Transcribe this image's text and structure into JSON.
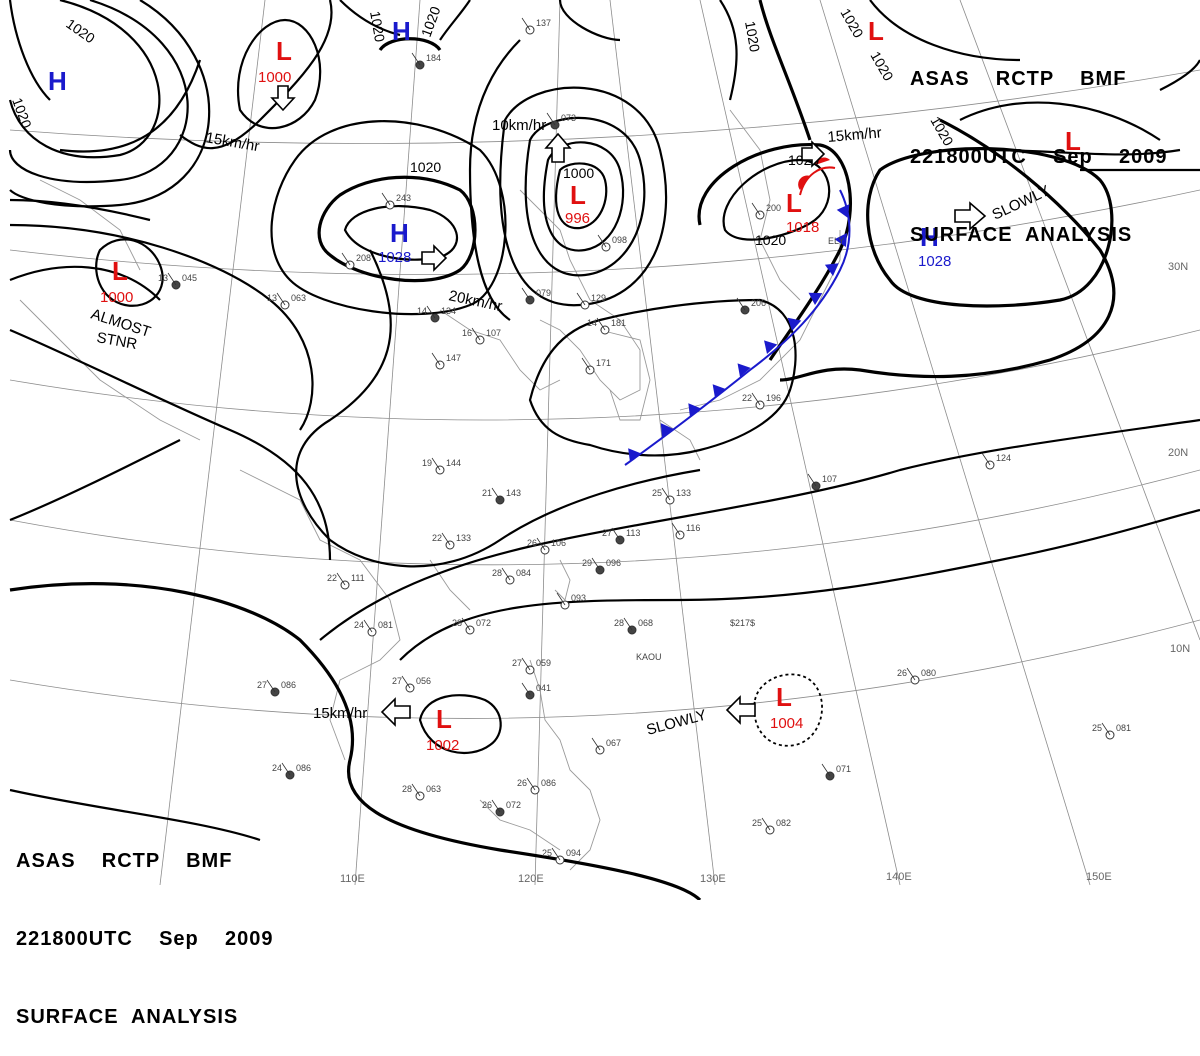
{
  "header": {
    "line1": "ASAS    RCTP    BMF",
    "line2": "221800UTC    Sep    2009",
    "line3": "SURFACE  ANALYSIS"
  },
  "colors": {
    "high": "#1a1acc",
    "low": "#e01010",
    "cold_front": "#1a1acc",
    "warm_front": "#e01010"
  },
  "pressure_centers": [
    {
      "type": "H",
      "value": "",
      "key": "h1"
    },
    {
      "type": "H",
      "value": "",
      "key": "h2"
    },
    {
      "type": "L",
      "value": "1000",
      "key": "l1"
    },
    {
      "type": "L",
      "value": "1000",
      "key": "l2"
    },
    {
      "type": "H",
      "value": "1028",
      "key": "h3"
    },
    {
      "type": "L",
      "value": "996",
      "key": "l3"
    },
    {
      "type": "L",
      "value": "1018",
      "key": "l4"
    },
    {
      "type": "H",
      "value": "1028",
      "key": "h4"
    },
    {
      "type": "L",
      "value": "",
      "key": "l5"
    },
    {
      "type": "L",
      "value": "",
      "key": "l6"
    },
    {
      "type": "L",
      "value": "1002",
      "key": "l7"
    },
    {
      "type": "L",
      "value": "1004",
      "key": "l8"
    }
  ],
  "isobar_labels": [
    "1020",
    "1020",
    "1020",
    "1020",
    "1020",
    "1020",
    "1020",
    "1020",
    "1020",
    "1020",
    "1000"
  ],
  "movement": {
    "m1": "15km/hr",
    "m2": "10km/hr",
    "m3": "20km/hr",
    "m4": "15km/hr",
    "m5": "SLOWLY",
    "m6": "15km/hr",
    "m7": "SLOWLY",
    "almost": "ALMOST",
    "stnr": "STNR"
  },
  "lat_labels": [
    "30N",
    "20N",
    "10N"
  ],
  "lon_labels": [
    "110E",
    "120E",
    "130E",
    "140E",
    "150E"
  ],
  "station_codes": [
    "ELY",
    "KAOU",
    "$217$"
  ],
  "station_plots": [
    {
      "t": "13",
      "p": "045"
    },
    {
      "t": "13",
      "p": "063"
    },
    {
      "t": "16",
      "p": "107"
    },
    {
      "t": "14",
      "p": "134"
    },
    {
      "t": "",
      "p": "147"
    },
    {
      "t": "19",
      "p": "144"
    },
    {
      "t": "21",
      "p": "143"
    },
    {
      "t": "22",
      "p": "133"
    },
    {
      "t": "26",
      "p": "106"
    },
    {
      "t": "29",
      "p": "096"
    },
    {
      "t": "28",
      "p": "084"
    },
    {
      "t": "",
      "p": "093"
    },
    {
      "t": "27",
      "p": "113"
    },
    {
      "t": "",
      "p": "116"
    },
    {
      "t": "28",
      "p": "072"
    },
    {
      "t": "28",
      "p": "068"
    },
    {
      "t": "22",
      "p": "111"
    },
    {
      "t": "24",
      "p": "081"
    },
    {
      "t": "27",
      "p": "086"
    },
    {
      "t": "27",
      "p": "056"
    },
    {
      "t": "27",
      "p": "059"
    },
    {
      "t": "",
      "p": "041"
    },
    {
      "t": "",
      "p": "067"
    },
    {
      "t": "28",
      "p": "063"
    },
    {
      "t": "26",
      "p": "072"
    },
    {
      "t": "26",
      "p": "086"
    },
    {
      "t": "25",
      "p": "094"
    },
    {
      "t": "24",
      "p": "086"
    },
    {
      "t": "26",
      "p": "080"
    },
    {
      "t": "25",
      "p": "081"
    },
    {
      "t": "",
      "p": "071"
    },
    {
      "t": "25",
      "p": "082"
    },
    {
      "t": "25",
      "p": "133"
    },
    {
      "t": "",
      "p": "107"
    },
    {
      "t": "",
      "p": "124"
    },
    {
      "t": "22",
      "p": "196"
    },
    {
      "t": "",
      "p": "206"
    },
    {
      "t": "",
      "p": "171"
    },
    {
      "t": "14",
      "p": "181"
    },
    {
      "t": "",
      "p": "079"
    },
    {
      "t": "",
      "p": "129"
    },
    {
      "t": "",
      "p": "098"
    },
    {
      "t": "",
      "p": "073"
    },
    {
      "t": "",
      "p": "208"
    },
    {
      "t": "",
      "p": "243"
    },
    {
      "t": "",
      "p": "184"
    },
    {
      "t": "",
      "p": "137"
    },
    {
      "t": "",
      "p": "200"
    }
  ]
}
